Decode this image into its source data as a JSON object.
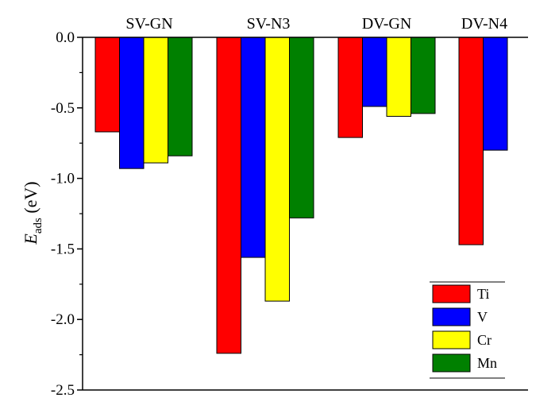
{
  "chart_data": {
    "type": "bar",
    "categories": [
      "SV-GN",
      "SV-N3",
      "DV-GN",
      "DV-N4"
    ],
    "series": [
      {
        "name": "Ti",
        "color": "#ff0000",
        "values": [
          -0.67,
          -2.24,
          -0.71,
          -1.47
        ]
      },
      {
        "name": "V",
        "color": "#0000ff",
        "values": [
          -0.93,
          -1.56,
          -0.49,
          -0.8
        ]
      },
      {
        "name": "Cr",
        "color": "#ffff00",
        "values": [
          -0.89,
          -1.87,
          -0.56,
          null
        ]
      },
      {
        "name": "Mn",
        "color": "#008000",
        "values": [
          -0.84,
          -1.28,
          -0.54,
          null
        ]
      }
    ],
    "ylabel": {
      "main": "E",
      "sub": "ads",
      "unit": " (eV)"
    },
    "ylim": [
      -2.5,
      0.0
    ],
    "yticks": [
      0.0,
      -0.5,
      -1.0,
      -1.5,
      -2.0,
      -2.5
    ],
    "ytick_labels": [
      "0.0",
      "-0.5",
      "-1.0",
      "-1.5",
      "-2.0",
      "-2.5"
    ],
    "legend_position": "bottom-right",
    "grid": false
  }
}
